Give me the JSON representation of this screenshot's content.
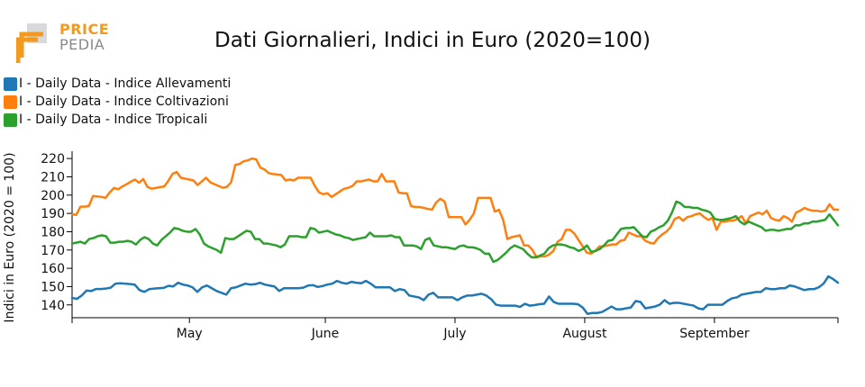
{
  "logo": {
    "line1": "PRICE",
    "line2": "PEDIA"
  },
  "colors": {
    "allevamenti": "#1f77b4",
    "coltivazioni": "#ff7f0e",
    "tropicali": "#2ca02c",
    "logo_orange": "#f39a1e",
    "logo_gray": "#8a8a8a"
  },
  "chart_data": {
    "type": "line",
    "title": "Dati Giornalieri, Indici in Euro (2020=100)",
    "xlabel": "",
    "ylabel": "Indici in Euro (2020 = 100)",
    "ylim": [
      133,
      224
    ],
    "yticks": [
      140,
      150,
      160,
      170,
      180,
      190,
      200,
      210,
      220
    ],
    "xlim": [
      0,
      124
    ],
    "xticks": [
      {
        "x": 19,
        "label": "May"
      },
      {
        "x": 41,
        "label": "June"
      },
      {
        "x": 62,
        "label": "July"
      },
      {
        "x": 83,
        "label": "August"
      },
      {
        "x": 104,
        "label": "September"
      }
    ],
    "legend_position": "top-left",
    "series": [
      {
        "name": "I - Daily Data - Indice Allevamenti",
        "color": "#1f77b4",
        "values": [
          143.8,
          143.3,
          145.1,
          147.8,
          147.6,
          148.7,
          148.7,
          148.9,
          149.4,
          151.6,
          151.8,
          151.6,
          151.4,
          151.1,
          148.1,
          147.1,
          148.6,
          148.9,
          149.1,
          149.3,
          150.4,
          150.1,
          152.1,
          151.1,
          150.6,
          149.6,
          147.1,
          149.6,
          150.6,
          149.1,
          147.6,
          146.6,
          145.6,
          149.1,
          149.6,
          150.6,
          151.6,
          151.1,
          151.3,
          152.1,
          151.1,
          150.6,
          150.1,
          147.6,
          149.1,
          149.1,
          149.1,
          149.1,
          149.4,
          150.6,
          150.8,
          149.8,
          150.3,
          151.1,
          151.6,
          153.1,
          152.1,
          151.6,
          152.6,
          152.1,
          151.8,
          153.1,
          151.6,
          149.6,
          149.6,
          149.6,
          149.6,
          147.6,
          148.6,
          148.1,
          145.1,
          144.6,
          144.1,
          142.6,
          145.6,
          146.6,
          144.1,
          144.1,
          144.1,
          144.1,
          142.6,
          144.1,
          145.1,
          145.1,
          145.6,
          146.1,
          145.1,
          143.1,
          140.1,
          139.6,
          139.6,
          139.6,
          139.6,
          138.9,
          140.6,
          139.6,
          139.9,
          140.4,
          140.6,
          144.6,
          141.6,
          140.6,
          140.6,
          140.6,
          140.6,
          140.4,
          138.6,
          135.1,
          135.6,
          135.6,
          136.1,
          137.6,
          139.1,
          137.6,
          137.6,
          138.1,
          138.6,
          142.1,
          141.6,
          138.1,
          138.6,
          139.1,
          140.1,
          142.6,
          140.6,
          141.1,
          141.1,
          140.6,
          140.1,
          139.6,
          138.1,
          137.6,
          140.1,
          140.1,
          140.1,
          140.1,
          142.1,
          143.6,
          144.1,
          145.6,
          146.1,
          146.6,
          147.1,
          147.1,
          149.1,
          148.6,
          148.6,
          149.1,
          149.1,
          150.6,
          150.1,
          149.1,
          148.1,
          148.6,
          148.6,
          149.6,
          151.6,
          155.6,
          154.1,
          152.1
        ]
      },
      {
        "name": "I - Daily Data - Indice Coltivazioni",
        "color": "#ff7f0e",
        "values": [
          189.5,
          189.2,
          193.7,
          193.7,
          194.0,
          199.5,
          199.3,
          199.0,
          198.5,
          201.5,
          203.9,
          203.2,
          204.7,
          205.9,
          207.3,
          208.5,
          206.8,
          208.8,
          204.5,
          203.5,
          203.9,
          204.4,
          204.7,
          207.8,
          211.6,
          212.6,
          209.5,
          209.0,
          208.5,
          208.0,
          205.5,
          207.5,
          209.5,
          207.0,
          206.0,
          205.0,
          204.0,
          204.5,
          207.0,
          216.5,
          217.0,
          218.5,
          219.0,
          220.0,
          219.5,
          215.0,
          214.0,
          212.0,
          211.5,
          211.3,
          211.0,
          208.0,
          208.5,
          208.0,
          209.5,
          209.5,
          209.5,
          209.5,
          205.0,
          201.5,
          200.5,
          201.0,
          199.0,
          200.5,
          202.0,
          203.5,
          204.0,
          205.0,
          207.5,
          207.5,
          208.0,
          208.5,
          207.5,
          207.5,
          211.5,
          207.5,
          207.5,
          207.5,
          201.5,
          201.0,
          201.0,
          194.0,
          193.5,
          193.5,
          193.0,
          192.5,
          192.0,
          196.0,
          198.0,
          196.5,
          188.0,
          188.0,
          188.0,
          188.0,
          184.0,
          186.5,
          190.0,
          198.5,
          198.5,
          198.5,
          198.5,
          191.0,
          192.0,
          186.5,
          176.0,
          177.0,
          177.5,
          178.0,
          172.5,
          172.5,
          170.0,
          166.0,
          166.5,
          166.5,
          167.5,
          169.5,
          174.5,
          176.0,
          181.0,
          181.0,
          179.0,
          175.5,
          172.0,
          168.5,
          168.0,
          169.5,
          172.0,
          172.0,
          172.5,
          173.0,
          173.0,
          175.0,
          175.5,
          179.5,
          178.5,
          177.5,
          177.5,
          175.0,
          174.0,
          173.5,
          176.5,
          178.5,
          180.0,
          182.5,
          187.0,
          188.0,
          186.0,
          188.0,
          188.5,
          189.5,
          190.0,
          188.0,
          186.5,
          187.5,
          181.0,
          185.5,
          185.5,
          186.0,
          186.0,
          187.0,
          188.5,
          184.5,
          188.5,
          189.5,
          190.5,
          189.5,
          191.5,
          187.5,
          186.5,
          186.0,
          188.5,
          187.5,
          185.5,
          190.5,
          191.5,
          193.0,
          192.0,
          191.5,
          191.5,
          191.0,
          191.5,
          195.0,
          192.0,
          192.0
        ]
      },
      {
        "name": "I - Daily Data - Indice Tropicali",
        "color": "#2ca02c",
        "values": [
          173.5,
          174.0,
          174.5,
          173.5,
          176.0,
          176.5,
          177.5,
          178.0,
          177.5,
          174.0,
          174.0,
          174.5,
          174.5,
          175.0,
          174.5,
          173.0,
          175.5,
          177.0,
          176.0,
          173.5,
          172.5,
          175.5,
          177.5,
          179.5,
          182.0,
          181.5,
          180.5,
          180.0,
          180.0,
          181.5,
          178.5,
          173.5,
          172.0,
          171.0,
          170.0,
          168.5,
          176.5,
          176.0,
          176.0,
          177.5,
          179.0,
          180.5,
          180.0,
          176.0,
          176.0,
          173.5,
          173.5,
          173.0,
          172.5,
          171.5,
          173.0,
          177.5,
          177.5,
          177.5,
          177.0,
          177.0,
          182.0,
          181.5,
          179.5,
          180.0,
          180.5,
          179.5,
          178.5,
          178.0,
          177.0,
          176.5,
          175.5,
          176.0,
          176.5,
          177.0,
          179.5,
          177.5,
          177.5,
          177.5,
          177.5,
          178.0,
          177.0,
          177.0,
          172.5,
          172.5,
          172.5,
          172.0,
          170.5,
          175.5,
          176.5,
          172.5,
          172.0,
          171.5,
          171.5,
          171.0,
          170.5,
          172.0,
          172.5,
          171.5,
          171.5,
          171.0,
          170.0,
          168.0,
          168.0,
          163.5,
          164.5,
          166.5,
          168.5,
          171.0,
          172.5,
          171.5,
          170.5,
          168.0,
          166.0,
          166.0,
          167.0,
          168.0,
          171.0,
          172.5,
          173.0,
          173.0,
          172.5,
          171.5,
          171.0,
          169.5,
          170.5,
          172.5,
          169.0,
          169.5,
          170.5,
          172.5,
          175.0,
          175.5,
          178.5,
          181.5,
          182.0,
          182.0,
          182.5,
          180.0,
          177.5,
          177.0,
          180.0,
          181.0,
          182.5,
          183.5,
          186.0,
          190.5,
          196.5,
          195.5,
          193.5,
          193.5,
          193.0,
          193.0,
          192.0,
          191.5,
          190.5,
          187.0,
          186.5,
          186.5,
          187.0,
          187.5,
          188.5,
          185.5,
          184.0,
          185.5,
          184.5,
          183.5,
          182.5,
          180.5,
          181.0,
          181.0,
          180.5,
          181.0,
          181.5,
          181.5,
          183.5,
          183.5,
          184.5,
          184.5,
          185.5,
          185.5,
          186.0,
          186.5,
          189.5,
          186.5,
          183.5
        ]
      }
    ]
  }
}
